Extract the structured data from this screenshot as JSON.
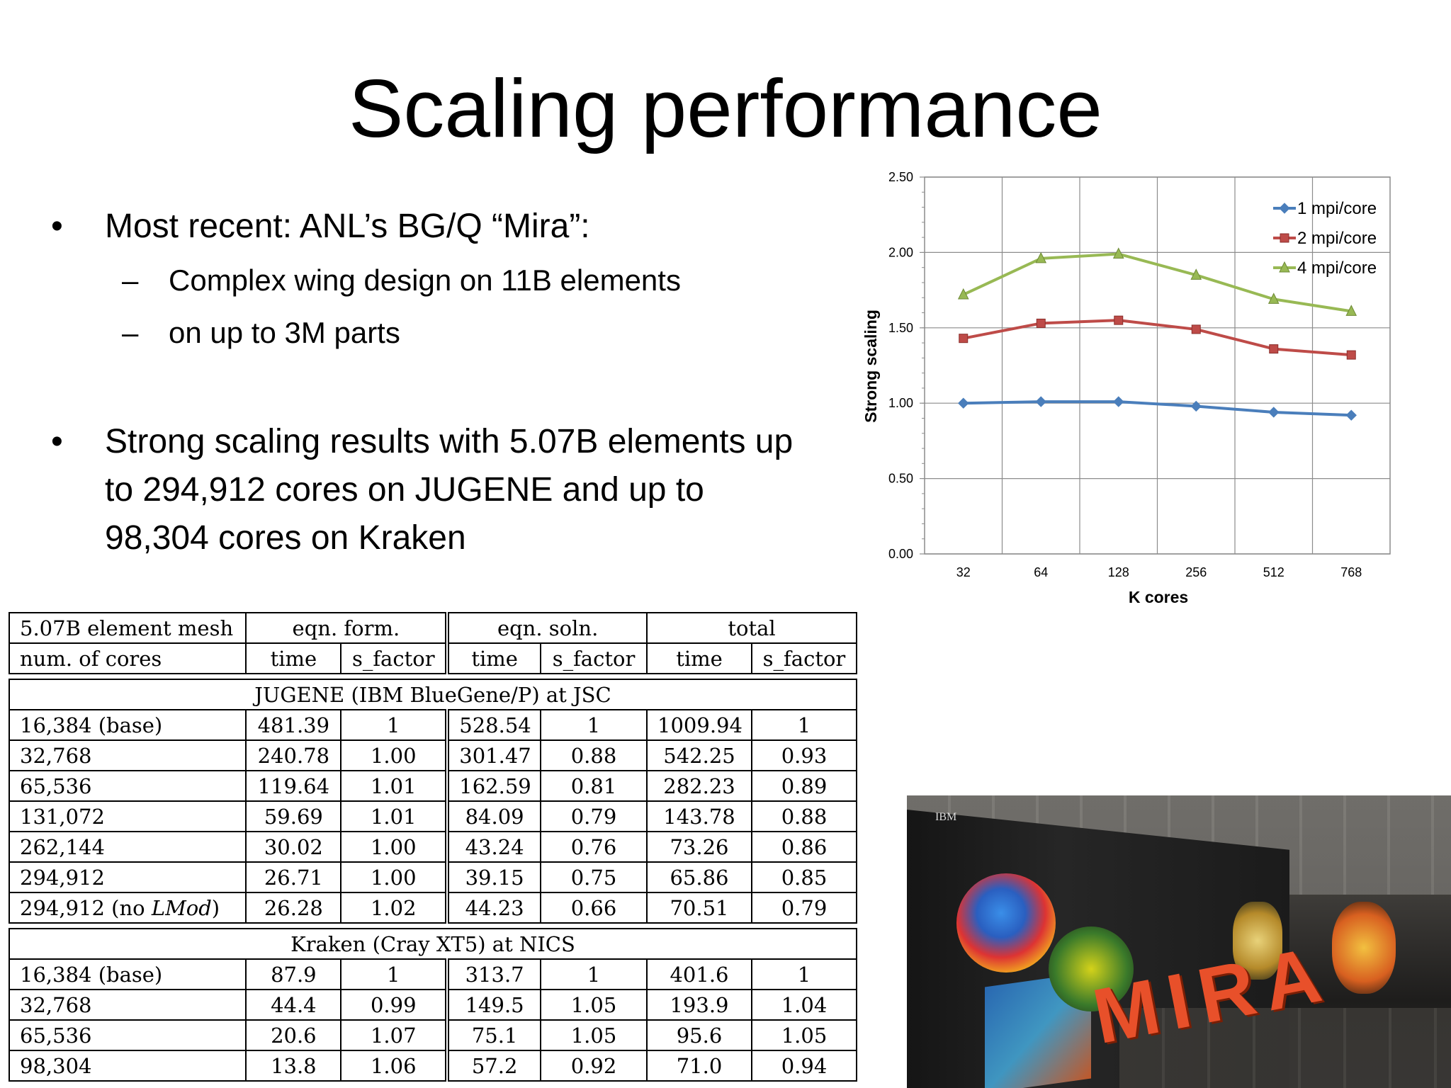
{
  "slide": {
    "title": "Scaling performance",
    "bullets": [
      {
        "text": "Most recent: ANL’s BG/Q “Mira”:"
      },
      {
        "text": "Strong scaling results with 5.07B elements up"
      },
      {
        "text": "to 294,912 cores on JUGENE and up to"
      },
      {
        "text": "98,304 cores on Kraken"
      }
    ],
    "bullet_glyph": "•",
    "sub_bullets": [
      {
        "dash": "–",
        "text": "Complex wing design on 11B elements"
      },
      {
        "dash": "–",
        "text": "on up to 3M parts"
      }
    ]
  },
  "chart_data": {
    "type": "line",
    "categories": [
      "32",
      "64",
      "128",
      "256",
      "512",
      "768"
    ],
    "series": [
      {
        "name": "1 mpi/core",
        "color": "#4a7ebb",
        "marker": "diamond",
        "values": [
          1.0,
          1.01,
          1.01,
          0.98,
          0.94,
          0.92
        ]
      },
      {
        "name": "2 mpi/core",
        "color": "#be4b48",
        "marker": "square",
        "values": [
          1.43,
          1.53,
          1.55,
          1.49,
          1.36,
          1.32
        ]
      },
      {
        "name": "4 mpi/core",
        "color": "#98b954",
        "marker": "triangle",
        "values": [
          1.72,
          1.96,
          1.99,
          1.85,
          1.69,
          1.61
        ]
      }
    ],
    "xlabel": "K cores",
    "ylabel": "Strong scaling",
    "ylim": [
      0,
      2.5
    ],
    "yticks": [
      "0.00",
      "0.50",
      "1.00",
      "1.50",
      "2.00",
      "2.50"
    ],
    "grid": true,
    "legend_position": "top-right"
  },
  "table": {
    "header1": {
      "mesh": "5.07B element mesh",
      "form": "eqn. form.",
      "soln": "eqn. soln.",
      "total": "total"
    },
    "header2": {
      "cores": "num. of cores",
      "time1": "time",
      "sf1": "s_factor",
      "time2": "time",
      "sf2": "s_factor",
      "time3": "time",
      "sf3": "s_factor"
    },
    "sections": [
      {
        "name": "JUGENE (IBM BlueGene/P) at JSC",
        "rows": [
          [
            "16,384 (base)",
            "481.39",
            "1",
            "528.54",
            "1",
            "1009.94",
            "1"
          ],
          [
            "32,768",
            "240.78",
            "1.00",
            "301.47",
            "0.88",
            "542.25",
            "0.93"
          ],
          [
            "65,536",
            "119.64",
            "1.01",
            "162.59",
            "0.81",
            "282.23",
            "0.89"
          ],
          [
            "131,072",
            "59.69",
            "1.01",
            "84.09",
            "0.79",
            "143.78",
            "0.88"
          ],
          [
            "262,144",
            "30.02",
            "1.00",
            "43.24",
            "0.76",
            "73.26",
            "0.86"
          ],
          [
            "294,912",
            "26.71",
            "1.00",
            "39.15",
            "0.75",
            "65.86",
            "0.85"
          ],
          [
            "294,912 (no LMod)",
            "26.28",
            "1.02",
            "44.23",
            "0.66",
            "70.51",
            "0.79"
          ]
        ]
      },
      {
        "name": "Kraken (Cray XT5) at NICS",
        "rows": [
          [
            "16,384 (base)",
            "87.9",
            "1",
            "313.7",
            "1",
            "401.6",
            "1"
          ],
          [
            "32,768",
            "44.4",
            "0.99",
            "149.5",
            "1.05",
            "193.9",
            "1.04"
          ],
          [
            "65,536",
            "20.6",
            "1.07",
            "75.1",
            "1.05",
            "95.6",
            "1.05"
          ],
          [
            "98,304",
            "13.8",
            "1.06",
            "57.2",
            "0.92",
            "71.0",
            "0.94"
          ]
        ]
      }
    ]
  },
  "photo": {
    "label": "MIRA",
    "brand": "IBM"
  }
}
